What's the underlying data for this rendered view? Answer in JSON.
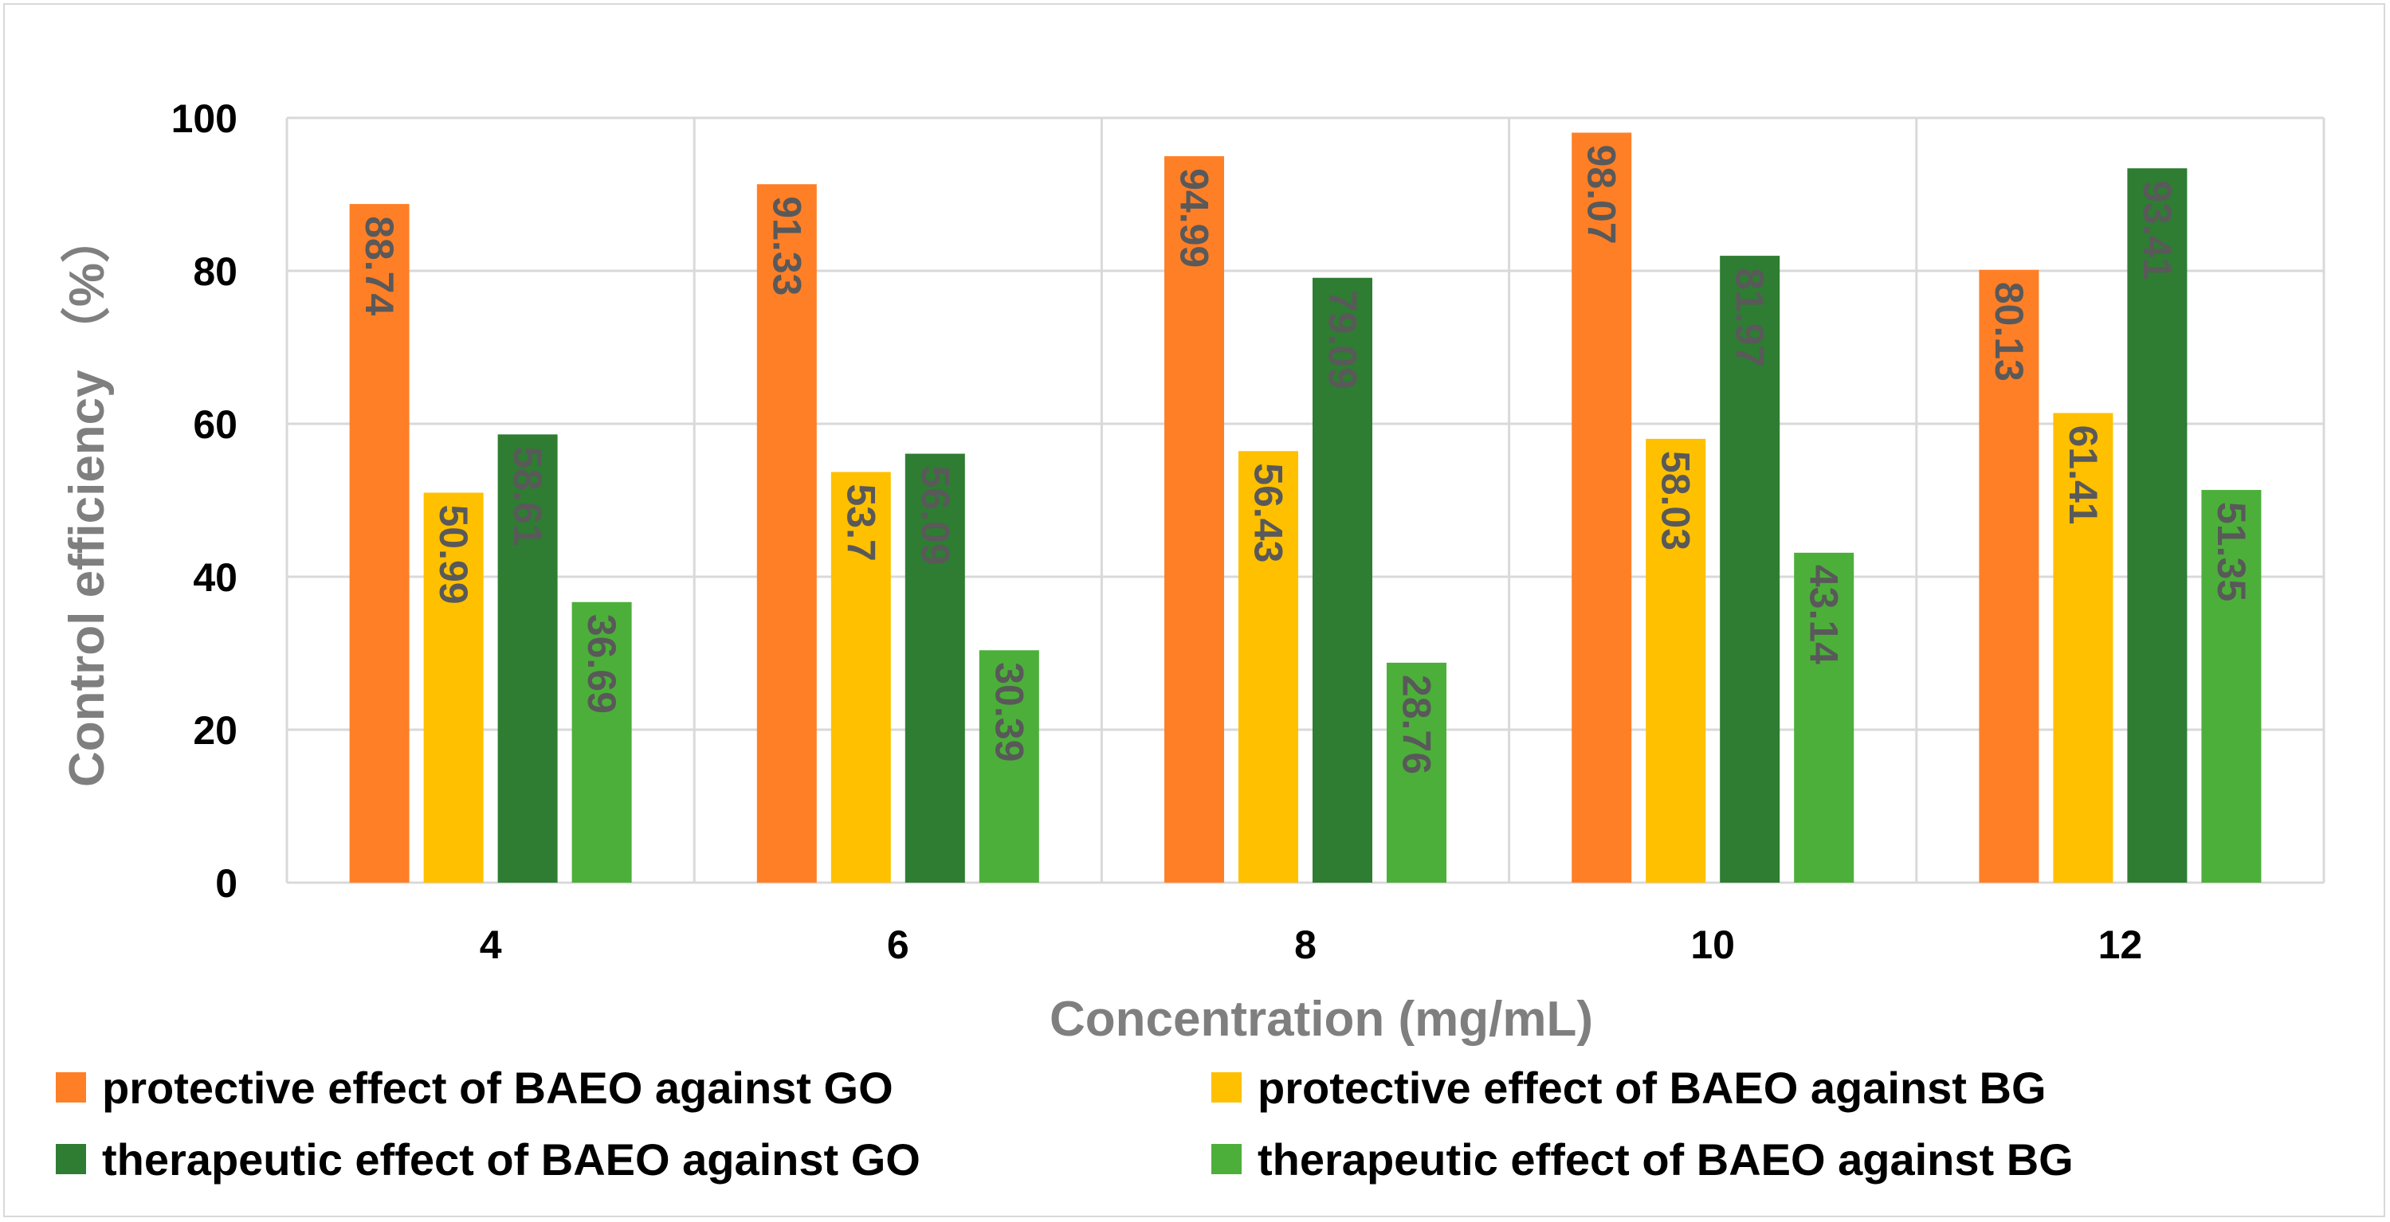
{
  "chart_data": {
    "type": "bar",
    "title": "",
    "xlabel": "Concentration (mg/mL)",
    "ylabel": "Control efficiency （%）",
    "ylim": [
      0,
      100
    ],
    "yticks": [
      "0",
      "20",
      "40",
      "60",
      "80",
      "100"
    ],
    "categories": [
      "4",
      "6",
      "8",
      "10",
      "12"
    ],
    "grid": true,
    "legend_position": "bottom",
    "series": [
      {
        "name": "protective effect of BAEO against GO",
        "color": "#ff7f27",
        "values": [
          88.74,
          91.33,
          94.99,
          98.07,
          80.13
        ],
        "labels": [
          "88.74",
          "91.33",
          "94.99",
          "98.07",
          "80.13"
        ]
      },
      {
        "name": "protective effect of BAEO against BG",
        "color": "#ffc000",
        "values": [
          50.99,
          53.7,
          56.43,
          58.03,
          61.41
        ],
        "labels": [
          "50.99",
          "53.7",
          "56.43",
          "58.03",
          "61.41"
        ]
      },
      {
        "name": "therapeutic effect of BAEO against GO",
        "color": "#2e7d32",
        "values": [
          58.61,
          56.09,
          79.09,
          81.97,
          93.41
        ],
        "labels": [
          "58.61",
          "56.09",
          "79.09",
          "81.97",
          "93.41"
        ]
      },
      {
        "name": "therapeutic effect of BAEO against BG",
        "color": "#4caf3a",
        "values": [
          36.69,
          30.39,
          28.76,
          43.14,
          51.35
        ],
        "labels": [
          "36.69",
          "30.39",
          "28.76",
          "43.14",
          "51.35"
        ]
      }
    ]
  }
}
